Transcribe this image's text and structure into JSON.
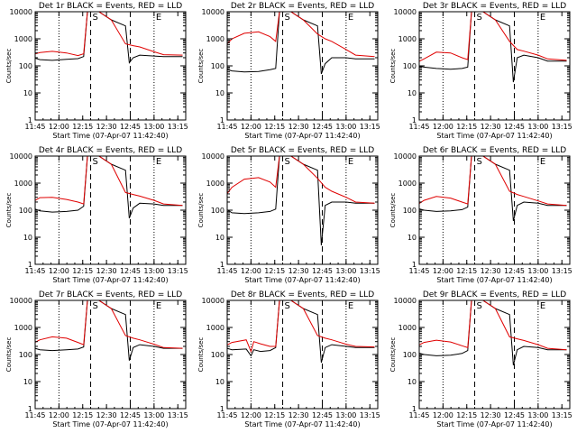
{
  "chart_data": {
    "type": "line",
    "scale": "log",
    "x_ticks": [
      "11:45",
      "12:00",
      "12:15",
      "12:30",
      "12:45",
      "13:00",
      "13:15"
    ],
    "y_ticks": [
      "1",
      "10",
      "100",
      "1000",
      "10000"
    ],
    "ylim": [
      1,
      10000
    ],
    "xlabel": "Start Time (07-Apr-07 11:42:40)",
    "ylabel": "Counts/sec",
    "markers": {
      "dotted": [
        {
          "time": "12:00",
          "label": ""
        },
        {
          "time": "13:00",
          "label": "E"
        }
      ],
      "dashed": [
        {
          "time": "12:20",
          "label": "S"
        },
        {
          "time": "12:45",
          "label": ""
        }
      ]
    },
    "legend_colors": {
      "events": "#000000",
      "lld": "#e00000"
    },
    "panels": [
      {
        "title": "Det 1r BLACK = Events, RED = LLD",
        "black": [
          [
            11.72,
            205
          ],
          [
            11.8,
            170
          ],
          [
            11.93,
            160
          ],
          [
            12.08,
            175
          ],
          [
            12.2,
            185
          ],
          [
            12.26,
            220
          ],
          [
            12.3,
            10000
          ],
          [
            12.42,
            10000
          ],
          [
            12.55,
            5000
          ],
          [
            12.7,
            3000
          ],
          [
            12.74,
            130
          ],
          [
            12.78,
            200
          ],
          [
            12.85,
            250
          ],
          [
            13.0,
            230
          ],
          [
            13.1,
            220
          ],
          [
            13.3,
            220
          ]
        ],
        "red": [
          [
            11.72,
            260
          ],
          [
            11.8,
            310
          ],
          [
            11.93,
            345
          ],
          [
            12.08,
            300
          ],
          [
            12.2,
            240
          ],
          [
            12.26,
            280
          ],
          [
            12.3,
            10000
          ],
          [
            12.42,
            10000
          ],
          [
            12.55,
            5000
          ],
          [
            12.7,
            650
          ],
          [
            12.78,
            560
          ],
          [
            12.85,
            500
          ],
          [
            13.0,
            330
          ],
          [
            13.1,
            260
          ],
          [
            13.3,
            250
          ]
        ]
      },
      {
        "title": "Det 2r BLACK = Events, RED = LLD",
        "black": [
          [
            11.72,
            80
          ],
          [
            11.8,
            65
          ],
          [
            11.93,
            60
          ],
          [
            12.08,
            62
          ],
          [
            12.2,
            72
          ],
          [
            12.26,
            80
          ],
          [
            12.3,
            10000
          ],
          [
            12.42,
            10000
          ],
          [
            12.55,
            5000
          ],
          [
            12.7,
            3000
          ],
          [
            12.74,
            50
          ],
          [
            12.78,
            120
          ],
          [
            12.85,
            200
          ],
          [
            13.0,
            200
          ],
          [
            13.1,
            180
          ],
          [
            13.3,
            180
          ]
        ],
        "red": [
          [
            11.72,
            500
          ],
          [
            11.8,
            1000
          ],
          [
            11.93,
            1600
          ],
          [
            12.08,
            1800
          ],
          [
            12.2,
            1200
          ],
          [
            12.26,
            800
          ],
          [
            12.3,
            10000
          ],
          [
            12.42,
            10000
          ],
          [
            12.55,
            5000
          ],
          [
            12.7,
            1500
          ],
          [
            12.78,
            1000
          ],
          [
            12.85,
            800
          ],
          [
            13.0,
            400
          ],
          [
            13.1,
            250
          ],
          [
            13.3,
            220
          ]
        ]
      },
      {
        "title": "Det 3r BLACK = Events, RED = LLD",
        "black": [
          [
            11.72,
            100
          ],
          [
            11.8,
            90
          ],
          [
            11.93,
            80
          ],
          [
            12.08,
            75
          ],
          [
            12.2,
            80
          ],
          [
            12.26,
            90
          ],
          [
            12.3,
            10000
          ],
          [
            12.42,
            10000
          ],
          [
            12.55,
            5000
          ],
          [
            12.7,
            3000
          ],
          [
            12.74,
            25
          ],
          [
            12.78,
            200
          ],
          [
            12.85,
            250
          ],
          [
            13.0,
            200
          ],
          [
            13.1,
            150
          ],
          [
            13.3,
            150
          ]
        ],
        "red": [
          [
            11.72,
            130
          ],
          [
            11.8,
            180
          ],
          [
            11.93,
            320
          ],
          [
            12.08,
            300
          ],
          [
            12.2,
            200
          ],
          [
            12.26,
            170
          ],
          [
            12.3,
            10000
          ],
          [
            12.42,
            10000
          ],
          [
            12.55,
            5000
          ],
          [
            12.7,
            800
          ],
          [
            12.78,
            400
          ],
          [
            12.85,
            350
          ],
          [
            13.0,
            250
          ],
          [
            13.1,
            180
          ],
          [
            13.3,
            160
          ]
        ]
      },
      {
        "title": "Det 4r BLACK = Events, RED = LLD",
        "black": [
          [
            11.72,
            120
          ],
          [
            11.8,
            95
          ],
          [
            11.93,
            85
          ],
          [
            12.08,
            90
          ],
          [
            12.2,
            100
          ],
          [
            12.26,
            140
          ],
          [
            12.3,
            10000
          ],
          [
            12.42,
            10000
          ],
          [
            12.55,
            5000
          ],
          [
            12.7,
            3000
          ],
          [
            12.74,
            50
          ],
          [
            12.78,
            120
          ],
          [
            12.85,
            180
          ],
          [
            13.0,
            170
          ],
          [
            13.1,
            150
          ],
          [
            13.3,
            150
          ]
        ],
        "red": [
          [
            11.72,
            200
          ],
          [
            11.8,
            290
          ],
          [
            11.93,
            300
          ],
          [
            12.08,
            250
          ],
          [
            12.2,
            200
          ],
          [
            12.26,
            170
          ],
          [
            12.3,
            10000
          ],
          [
            12.42,
            10000
          ],
          [
            12.55,
            5000
          ],
          [
            12.7,
            450
          ],
          [
            12.78,
            380
          ],
          [
            12.85,
            330
          ],
          [
            13.0,
            230
          ],
          [
            13.1,
            170
          ],
          [
            13.3,
            150
          ]
        ]
      },
      {
        "title": "Det 5r BLACK = Events, RED = LLD",
        "black": [
          [
            11.72,
            120
          ],
          [
            11.8,
            80
          ],
          [
            11.93,
            75
          ],
          [
            12.08,
            80
          ],
          [
            12.2,
            90
          ],
          [
            12.26,
            110
          ],
          [
            12.3,
            10000
          ],
          [
            12.42,
            10000
          ],
          [
            12.55,
            5000
          ],
          [
            12.7,
            3000
          ],
          [
            12.74,
            5
          ],
          [
            12.78,
            150
          ],
          [
            12.85,
            200
          ],
          [
            13.0,
            200
          ],
          [
            13.1,
            180
          ],
          [
            13.3,
            180
          ]
        ],
        "red": [
          [
            11.72,
            300
          ],
          [
            11.8,
            700
          ],
          [
            11.93,
            1400
          ],
          [
            12.08,
            1600
          ],
          [
            12.2,
            1100
          ],
          [
            12.26,
            700
          ],
          [
            12.3,
            10000
          ],
          [
            12.42,
            10000
          ],
          [
            12.55,
            5000
          ],
          [
            12.7,
            1500
          ],
          [
            12.78,
            700
          ],
          [
            12.85,
            500
          ],
          [
            13.0,
            300
          ],
          [
            13.1,
            200
          ],
          [
            13.3,
            180
          ]
        ]
      },
      {
        "title": "Det 6r BLACK = Events, RED = LLD",
        "black": [
          [
            11.72,
            120
          ],
          [
            11.8,
            100
          ],
          [
            11.93,
            90
          ],
          [
            12.08,
            95
          ],
          [
            12.2,
            105
          ],
          [
            12.26,
            130
          ],
          [
            12.3,
            10000
          ],
          [
            12.42,
            10000
          ],
          [
            12.55,
            5000
          ],
          [
            12.7,
            3000
          ],
          [
            12.74,
            40
          ],
          [
            12.78,
            150
          ],
          [
            12.85,
            200
          ],
          [
            13.0,
            180
          ],
          [
            13.1,
            150
          ],
          [
            13.3,
            150
          ]
        ],
        "red": [
          [
            11.72,
            150
          ],
          [
            11.8,
            230
          ],
          [
            11.93,
            320
          ],
          [
            12.08,
            280
          ],
          [
            12.2,
            200
          ],
          [
            12.26,
            170
          ],
          [
            12.3,
            10000
          ],
          [
            12.42,
            10000
          ],
          [
            12.55,
            5000
          ],
          [
            12.7,
            500
          ],
          [
            12.78,
            380
          ],
          [
            12.85,
            320
          ],
          [
            13.0,
            220
          ],
          [
            13.1,
            170
          ],
          [
            13.3,
            150
          ]
        ]
      },
      {
        "title": "Det 7r BLACK = Events, RED = LLD",
        "black": [
          [
            11.72,
            180
          ],
          [
            11.8,
            150
          ],
          [
            11.93,
            140
          ],
          [
            12.08,
            150
          ],
          [
            12.2,
            160
          ],
          [
            12.26,
            190
          ],
          [
            12.3,
            10000
          ],
          [
            12.42,
            10000
          ],
          [
            12.55,
            5000
          ],
          [
            12.7,
            3000
          ],
          [
            12.74,
            60
          ],
          [
            12.78,
            180
          ],
          [
            12.85,
            230
          ],
          [
            13.0,
            200
          ],
          [
            13.1,
            170
          ],
          [
            13.3,
            170
          ]
        ],
        "red": [
          [
            11.72,
            250
          ],
          [
            11.8,
            350
          ],
          [
            11.93,
            450
          ],
          [
            12.08,
            400
          ],
          [
            12.2,
            280
          ],
          [
            12.26,
            230
          ],
          [
            12.3,
            10000
          ],
          [
            12.42,
            10000
          ],
          [
            12.55,
            5000
          ],
          [
            12.7,
            500
          ],
          [
            12.78,
            400
          ],
          [
            12.85,
            350
          ],
          [
            13.0,
            240
          ],
          [
            13.1,
            180
          ],
          [
            13.3,
            170
          ]
        ]
      },
      {
        "title": "Det 8r BLACK = Events, RED = LLD",
        "black": [
          [
            11.72,
            180
          ],
          [
            11.8,
            150
          ],
          [
            11.95,
            160
          ],
          [
            12.0,
            90
          ],
          [
            12.03,
            150
          ],
          [
            12.1,
            130
          ],
          [
            12.2,
            140
          ],
          [
            12.26,
            180
          ],
          [
            12.3,
            10000
          ],
          [
            12.42,
            10000
          ],
          [
            12.55,
            5000
          ],
          [
            12.7,
            3000
          ],
          [
            12.74,
            50
          ],
          [
            12.78,
            180
          ],
          [
            12.85,
            230
          ],
          [
            13.0,
            200
          ],
          [
            13.1,
            180
          ],
          [
            13.3,
            180
          ]
        ],
        "red": [
          [
            11.72,
            200
          ],
          [
            11.8,
            280
          ],
          [
            11.95,
            350
          ],
          [
            12.0,
            130
          ],
          [
            12.03,
            300
          ],
          [
            12.1,
            250
          ],
          [
            12.2,
            200
          ],
          [
            12.26,
            200
          ],
          [
            12.3,
            10000
          ],
          [
            12.42,
            10000
          ],
          [
            12.55,
            5000
          ],
          [
            12.7,
            500
          ],
          [
            12.78,
            400
          ],
          [
            12.85,
            350
          ],
          [
            13.0,
            240
          ],
          [
            13.1,
            200
          ],
          [
            13.3,
            190
          ]
        ]
      },
      {
        "title": "Det 9r BLACK = Events, RED = LLD",
        "black": [
          [
            11.72,
            120
          ],
          [
            11.8,
            100
          ],
          [
            11.93,
            90
          ],
          [
            12.08,
            95
          ],
          [
            12.2,
            110
          ],
          [
            12.26,
            140
          ],
          [
            12.3,
            10000
          ],
          [
            12.42,
            10000
          ],
          [
            12.55,
            5000
          ],
          [
            12.7,
            3000
          ],
          [
            12.74,
            40
          ],
          [
            12.78,
            150
          ],
          [
            12.85,
            200
          ],
          [
            13.0,
            180
          ],
          [
            13.1,
            150
          ],
          [
            13.3,
            150
          ]
        ],
        "red": [
          [
            11.72,
            200
          ],
          [
            11.8,
            280
          ],
          [
            11.93,
            340
          ],
          [
            12.08,
            290
          ],
          [
            12.2,
            210
          ],
          [
            12.26,
            180
          ],
          [
            12.3,
            10000
          ],
          [
            12.42,
            10000
          ],
          [
            12.55,
            5000
          ],
          [
            12.7,
            450
          ],
          [
            12.78,
            380
          ],
          [
            12.85,
            330
          ],
          [
            13.0,
            230
          ],
          [
            13.1,
            170
          ],
          [
            13.3,
            150
          ]
        ]
      }
    ]
  }
}
